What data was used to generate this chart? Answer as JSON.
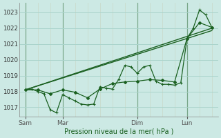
{
  "title": "",
  "xlabel": "Pression niveau de la mer( hPa )",
  "ylabel": "",
  "bg_color": "#cce9e4",
  "grid_color": "#aad4cc",
  "line_color": "#1a6020",
  "ylim": [
    1016.4,
    1023.6
  ],
  "yticks": [
    1017,
    1018,
    1019,
    1020,
    1021,
    1022,
    1023
  ],
  "day_labels": [
    "Sam",
    "Mar",
    "Dim",
    "Lun"
  ],
  "day_positions": [
    0,
    24,
    72,
    104
  ],
  "xlim": [
    -4,
    124
  ],
  "series_detailed_x": [
    0,
    4,
    8,
    12,
    16,
    20,
    24,
    28,
    32,
    36,
    40,
    44,
    48,
    52,
    56,
    60,
    64,
    68,
    72,
    76,
    80,
    84,
    88,
    92,
    96,
    100,
    104,
    108,
    112,
    116,
    120
  ],
  "series_detailed_y": [
    1018.1,
    1018.15,
    1018.0,
    1017.85,
    1016.85,
    1016.65,
    1017.8,
    1017.6,
    1017.4,
    1017.2,
    1017.15,
    1017.2,
    1018.3,
    1018.2,
    1018.15,
    1018.75,
    1019.65,
    1019.55,
    1019.15,
    1019.55,
    1019.65,
    1018.65,
    1018.45,
    1018.45,
    1018.4,
    1018.55,
    1021.35,
    1022.0,
    1023.15,
    1022.85,
    1022.05
  ],
  "series_medium_x": [
    0,
    8,
    16,
    24,
    32,
    40,
    48,
    56,
    64,
    72,
    80,
    88,
    96,
    104,
    112,
    120
  ],
  "series_medium_y": [
    1018.1,
    1018.1,
    1017.85,
    1018.1,
    1017.95,
    1017.6,
    1018.15,
    1018.5,
    1018.6,
    1018.65,
    1018.75,
    1018.7,
    1018.6,
    1021.35,
    1022.35,
    1022.05
  ],
  "series_trend1_x": [
    0,
    120
  ],
  "series_trend1_y": [
    1018.1,
    1022.0
  ],
  "series_trend2_x": [
    0,
    120
  ],
  "series_trend2_y": [
    1018.1,
    1021.85
  ],
  "vline_color": "#7aa88a",
  "minor_vline_color": "#c8d8c8"
}
